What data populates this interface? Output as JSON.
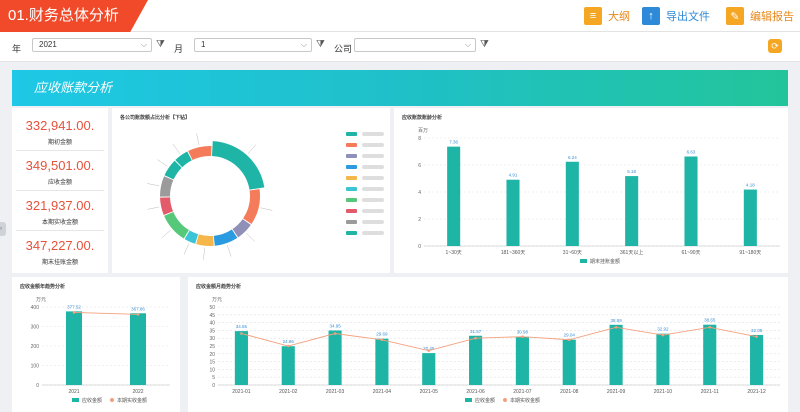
{
  "header": {
    "title": "01.财务总体分析",
    "buttons": [
      {
        "label": "大纲",
        "icon": "outline-icon",
        "color": "#f5a623"
      },
      {
        "label": "导出文件",
        "icon": "export-icon",
        "color": "#2e8ad8"
      },
      {
        "label": "编辑报告",
        "icon": "edit-icon",
        "color": "#f5a623"
      }
    ]
  },
  "filters": {
    "year_label": "年",
    "year_value": "2021",
    "month_label": "月",
    "month_value": "1",
    "company_label": "公司",
    "company_value": ""
  },
  "banner": {
    "title": "应收账款分析"
  },
  "kpis": [
    {
      "value": "332,941.00.",
      "label": "期初金额"
    },
    {
      "value": "349,501.00.",
      "label": "应收金额"
    },
    {
      "value": "321,937.00.",
      "label": "本期实收金额"
    },
    {
      "value": "347,227.00.",
      "label": "期末挂账金额"
    }
  ],
  "donut": {
    "title": "各公司账款额占比分析【下钻】",
    "colors": [
      "#1fb5a6",
      "#f47c5a",
      "#8f8fb8",
      "#2a9be0",
      "#f5b64a",
      "#3ac4d6",
      "#56c87a",
      "#e35a6a",
      "#9b9b9b",
      "#1fb5a6"
    ],
    "values": [
      22,
      12,
      6,
      8,
      6,
      4,
      10,
      6,
      7,
      6,
      5,
      8
    ]
  },
  "aging": {
    "title": "应收账款账龄分析",
    "unit": "百万",
    "legend": "期末挂账金额",
    "color": "#1fb5a6",
    "chart_data": {
      "type": "bar",
      "categories": [
        "1~30天",
        "181~360天",
        "31~60天",
        "361天以上",
        "61~90天",
        "91~180天"
      ],
      "values": [
        7.36,
        4.91,
        6.24,
        5.18,
        6.63,
        4.18
      ],
      "ylim": [
        0,
        8
      ],
      "yticks": [
        0,
        2,
        4,
        6,
        8
      ]
    }
  },
  "annual": {
    "title": "应收金额年趋势分析",
    "unit": "万元",
    "legend_bar": "应收金额",
    "legend_line": "本期实收金额",
    "bar_color": "#1fb5a6",
    "line_color": "#f4a07e",
    "chart_data": {
      "type": "bar",
      "categories": [
        "2021",
        "2022"
      ],
      "values": [
        377.52,
        367.86
      ],
      "line_values": [
        372,
        362
      ],
      "ylim": [
        0,
        400
      ],
      "yticks": [
        0,
        100,
        200,
        300,
        400
      ]
    }
  },
  "monthly": {
    "title": "应收金额月趋势分析",
    "unit": "万元",
    "legend_bar": "应收金额",
    "legend_line": "本期实收金额",
    "bar_color": "#1fb5a6",
    "line_color": "#f4a07e",
    "chart_data": {
      "type": "bar",
      "categories": [
        "2021-01",
        "2021-02",
        "2021-03",
        "2021-04",
        "2021-05",
        "2021-06",
        "2021-07",
        "2021-08",
        "2021-09",
        "2021-10",
        "2021-11",
        "2021-12"
      ],
      "values": [
        34.55,
        24.86,
        34.95,
        29.69,
        20.45,
        31.57,
        30.98,
        29.04,
        38.59,
        32.92,
        38.65,
        32.08
      ],
      "line_values": [
        33,
        25,
        33,
        29,
        22,
        30,
        31,
        29,
        37,
        32,
        37,
        31
      ],
      "ylim": [
        0,
        50
      ],
      "yticks": [
        0,
        5,
        10,
        15,
        20,
        25,
        30,
        35,
        40,
        45,
        50
      ]
    }
  }
}
